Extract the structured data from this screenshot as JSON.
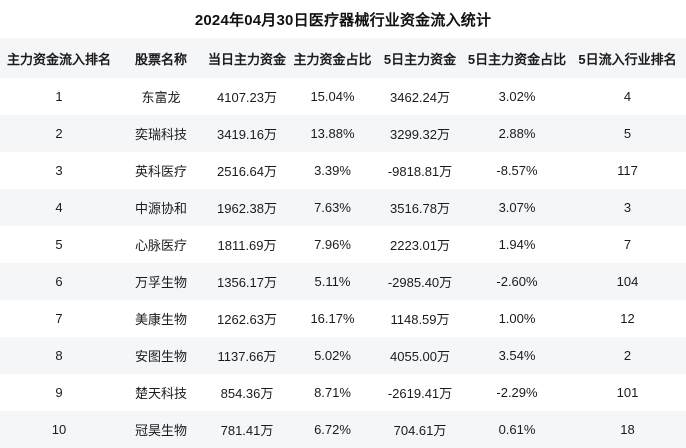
{
  "page": {
    "title": "2024年04月30日医疗器械行业资金流入统计"
  },
  "colors": {
    "background": "#ffffff",
    "stripe": "#f5f6f8",
    "text": "#1b1b1b"
  },
  "chart_data": {
    "type": "table",
    "title": "2024年04月30日医疗器械行业资金流入统计",
    "columns": [
      "主力资金流入排名",
      "股票名称",
      "当日主力资金",
      "主力资金占比",
      "5日主力资金",
      "5日主力资金占比",
      "5日流入行业排名"
    ],
    "rows": [
      {
        "rank": "1",
        "name": "东富龙",
        "day_main": "4107.23万",
        "day_pct": "15.04%",
        "five_main": "3462.24万",
        "five_pct": "3.02%",
        "five_rank": "4"
      },
      {
        "rank": "2",
        "name": "奕瑞科技",
        "day_main": "3419.16万",
        "day_pct": "13.88%",
        "five_main": "3299.32万",
        "five_pct": "2.88%",
        "five_rank": "5"
      },
      {
        "rank": "3",
        "name": "英科医疗",
        "day_main": "2516.64万",
        "day_pct": "3.39%",
        "five_main": "-9818.81万",
        "five_pct": "-8.57%",
        "five_rank": "117"
      },
      {
        "rank": "4",
        "name": "中源协和",
        "day_main": "1962.38万",
        "day_pct": "7.63%",
        "five_main": "3516.78万",
        "five_pct": "3.07%",
        "five_rank": "3"
      },
      {
        "rank": "5",
        "name": "心脉医疗",
        "day_main": "1811.69万",
        "day_pct": "7.96%",
        "five_main": "2223.01万",
        "five_pct": "1.94%",
        "five_rank": "7"
      },
      {
        "rank": "6",
        "name": "万孚生物",
        "day_main": "1356.17万",
        "day_pct": "5.11%",
        "five_main": "-2985.40万",
        "five_pct": "-2.60%",
        "five_rank": "104"
      },
      {
        "rank": "7",
        "name": "美康生物",
        "day_main": "1262.63万",
        "day_pct": "16.17%",
        "five_main": "1148.59万",
        "five_pct": "1.00%",
        "five_rank": "12"
      },
      {
        "rank": "8",
        "name": "安图生物",
        "day_main": "1137.66万",
        "day_pct": "5.02%",
        "five_main": "4055.00万",
        "five_pct": "3.54%",
        "five_rank": "2"
      },
      {
        "rank": "9",
        "name": "楚天科技",
        "day_main": "854.36万",
        "day_pct": "8.71%",
        "five_main": "-2619.41万",
        "five_pct": "-2.29%",
        "five_rank": "101"
      },
      {
        "rank": "10",
        "name": "冠昊生物",
        "day_main": "781.41万",
        "day_pct": "6.72%",
        "five_main": "704.61万",
        "five_pct": "0.61%",
        "five_rank": "18"
      }
    ]
  }
}
